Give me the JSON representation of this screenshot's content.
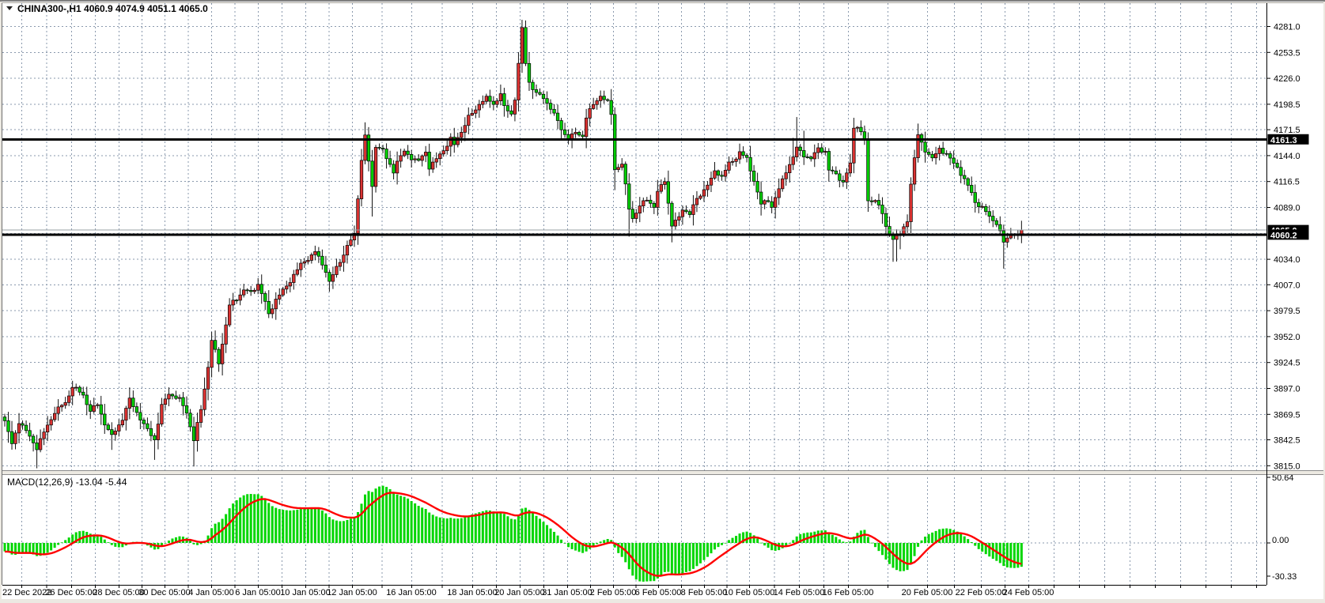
{
  "title": {
    "symbol": "CHINA300-",
    "timeframe": "H1",
    "open": "4060.9",
    "high": "4074.9",
    "low": "4051.1",
    "close": "4065.0",
    "text": "CHINA300-,H1  4060.9 4074.9 4051.1 4065.0"
  },
  "price_axis": {
    "ticks": [
      "4281.0",
      "4253.5",
      "4226.0",
      "4198.5",
      "4171.5",
      "4144.0",
      "4116.5",
      "4089.0",
      "4034.0",
      "4007.0",
      "3979.5",
      "3952.0",
      "3924.5",
      "3897.0",
      "3869.5",
      "3842.5",
      "3815.0"
    ]
  },
  "time_axis": {
    "labels": [
      "22 Dec 2022",
      "26 Dec 05:00",
      "28 Dec 05:00",
      "30 Dec 05:00",
      "4 Jan 05:00",
      "6 Jan 05:00",
      "10 Jan 05:00",
      "12 Jan 05:00",
      "16 Jan 05:00",
      "18 Jan 05:00",
      "20 Jan 05:00",
      "31 Jan 05:00",
      "2 Feb 05:00",
      "6 Feb 05:00",
      "8 Feb 05:00",
      "10 Feb 05:00",
      "14 Feb 05:00",
      "16 Feb 05:00",
      "20 Feb 05:00",
      "22 Feb 05:00",
      "24 Feb 05:00"
    ],
    "x": [
      27,
      90,
      150,
      208,
      267,
      326,
      386,
      445,
      520,
      597,
      657,
      717,
      775,
      832,
      890,
      947,
      1010,
      1072,
      1172,
      1240,
      1300
    ]
  },
  "macd_panel": {
    "label": "MACD(12,26,9) -13.04 -5.44",
    "indicator": "MACD",
    "params": "12,26,9",
    "macd_value": "-13.04",
    "signal_value": "-5.44",
    "ticks": [
      {
        "text": "50.64",
        "value": 50.64
      },
      {
        "text": "0.00",
        "value": 0
      },
      {
        "text": "-30.33",
        "value": -30.33
      }
    ]
  },
  "levels": [
    {
      "label": "4161.3",
      "value": 4161.3
    },
    {
      "label": "4060.2",
      "value": 4060.2
    }
  ],
  "bid_line": {
    "label": "4065.0",
    "value": 4065.0
  },
  "colors": {
    "bull": "#da3231",
    "bear": "#00ce00",
    "wick": "#111111",
    "grid": "#8a99ad",
    "level": "#000000",
    "signal": "#ff0000",
    "histogram": "#00d600",
    "label_box": "#000000",
    "label_text": "#ffffff",
    "bid": "#9aa0a6"
  },
  "chart_data": {
    "type": "candlestick",
    "symbol": "CHINA300",
    "timeframe": "H1",
    "title": "CHINA300-,H1",
    "visible_range": {
      "price_min": 3815.0,
      "price_max": 4281.0,
      "time_start": "22 Dec 2022",
      "time_end": "24 Feb 05:00"
    },
    "last_candle": {
      "open": 4060.9,
      "high": 4074.9,
      "low": 4051.1,
      "close": 4065.0
    },
    "horizontal_lines": [
      4161.3,
      4060.2
    ],
    "current_price": 4065.0,
    "candle_count": 286,
    "price_waypoints": [
      [
        0,
        3862
      ],
      [
        2,
        3838
      ],
      [
        4,
        3862
      ],
      [
        7,
        3846
      ],
      [
        9,
        3834
      ],
      [
        12,
        3858
      ],
      [
        14,
        3872
      ],
      [
        17,
        3882
      ],
      [
        19,
        3899
      ],
      [
        22,
        3890
      ],
      [
        24,
        3873
      ],
      [
        26,
        3880
      ],
      [
        28,
        3860
      ],
      [
        30,
        3846
      ],
      [
        33,
        3865
      ],
      [
        35,
        3885
      ],
      [
        37,
        3872
      ],
      [
        39,
        3858
      ],
      [
        42,
        3843
      ],
      [
        44,
        3878
      ],
      [
        46,
        3892
      ],
      [
        49,
        3885
      ],
      [
        51,
        3872
      ],
      [
        53,
        3842
      ],
      [
        55,
        3875
      ],
      [
        57,
        3920
      ],
      [
        58,
        3948
      ],
      [
        60,
        3924
      ],
      [
        61,
        3945
      ],
      [
        63,
        3985
      ],
      [
        65,
        3992
      ],
      [
        67,
        4002
      ],
      [
        69,
        3998
      ],
      [
        71,
        4008
      ],
      [
        73,
        3988
      ],
      [
        74,
        3975
      ],
      [
        76,
        3992
      ],
      [
        79,
        4005
      ],
      [
        81,
        4018
      ],
      [
        83,
        4028
      ],
      [
        85,
        4035
      ],
      [
        87,
        4042
      ],
      [
        90,
        4022
      ],
      [
        91,
        4010
      ],
      [
        94,
        4032
      ],
      [
        96,
        4048
      ],
      [
        98,
        4060
      ],
      [
        100,
        4140
      ],
      [
        101,
        4165
      ],
      [
        103,
        4110
      ],
      [
        104,
        4155
      ],
      [
        106,
        4150
      ],
      [
        107,
        4140
      ],
      [
        109,
        4128
      ],
      [
        110,
        4138
      ],
      [
        112,
        4148
      ],
      [
        114,
        4142
      ],
      [
        116,
        4138
      ],
      [
        118,
        4148
      ],
      [
        119,
        4132
      ],
      [
        121,
        4140
      ],
      [
        123,
        4150
      ],
      [
        125,
        4162
      ],
      [
        126,
        4155
      ],
      [
        128,
        4170
      ],
      [
        130,
        4185
      ],
      [
        132,
        4192
      ],
      [
        133,
        4200
      ],
      [
        135,
        4205
      ],
      [
        137,
        4198
      ],
      [
        139,
        4210
      ],
      [
        140,
        4195
      ],
      [
        142,
        4188
      ],
      [
        143,
        4205
      ],
      [
        145,
        4278
      ],
      [
        146,
        4242
      ],
      [
        147,
        4222
      ],
      [
        149,
        4210
      ],
      [
        151,
        4205
      ],
      [
        153,
        4195
      ],
      [
        155,
        4180
      ],
      [
        156,
        4172
      ],
      [
        158,
        4162
      ],
      [
        160,
        4168
      ],
      [
        162,
        4165
      ],
      [
        163,
        4185
      ],
      [
        165,
        4198
      ],
      [
        167,
        4208
      ],
      [
        169,
        4200
      ],
      [
        170,
        4188
      ],
      [
        171,
        4130
      ],
      [
        173,
        4135
      ],
      [
        175,
        4088
      ],
      [
        176,
        4078
      ],
      [
        178,
        4090
      ],
      [
        180,
        4098
      ],
      [
        182,
        4090
      ],
      [
        183,
        4105
      ],
      [
        185,
        4118
      ],
      [
        187,
        4070
      ],
      [
        189,
        4078
      ],
      [
        190,
        4088
      ],
      [
        192,
        4082
      ],
      [
        194,
        4098
      ],
      [
        196,
        4108
      ],
      [
        198,
        4118
      ],
      [
        199,
        4128
      ],
      [
        201,
        4122
      ],
      [
        203,
        4135
      ],
      [
        205,
        4142
      ],
      [
        206,
        4148
      ],
      [
        208,
        4140
      ],
      [
        210,
        4118
      ],
      [
        212,
        4092
      ],
      [
        214,
        4097
      ],
      [
        215,
        4090
      ],
      [
        217,
        4108
      ],
      [
        219,
        4128
      ],
      [
        221,
        4142
      ],
      [
        222,
        4152
      ],
      [
        224,
        4145
      ],
      [
        226,
        4140
      ],
      [
        228,
        4152
      ],
      [
        230,
        4148
      ],
      [
        231,
        4128
      ],
      [
        233,
        4125
      ],
      [
        235,
        4115
      ],
      [
        237,
        4135
      ],
      [
        238,
        4174
      ],
      [
        239,
        4176
      ],
      [
        241,
        4160
      ],
      [
        242,
        4095
      ],
      [
        244,
        4098
      ],
      [
        246,
        4082
      ],
      [
        247,
        4068
      ],
      [
        249,
        4056
      ],
      [
        251,
        4060
      ],
      [
        253,
        4076
      ],
      [
        254,
        4114
      ],
      [
        256,
        4166
      ],
      [
        258,
        4150
      ],
      [
        260,
        4140
      ],
      [
        262,
        4152
      ],
      [
        264,
        4145
      ],
      [
        265,
        4140
      ],
      [
        267,
        4132
      ],
      [
        269,
        4118
      ],
      [
        271,
        4105
      ],
      [
        272,
        4095
      ],
      [
        274,
        4088
      ],
      [
        276,
        4080
      ],
      [
        278,
        4072
      ],
      [
        279,
        4062
      ],
      [
        280,
        4052
      ],
      [
        282,
        4062
      ],
      [
        284,
        4058
      ],
      [
        285,
        4065
      ]
    ],
    "high_spikes": [
      [
        101,
        6
      ],
      [
        130,
        6
      ],
      [
        221,
        16
      ],
      [
        222,
        20
      ],
      [
        224,
        14
      ]
    ],
    "low_spikes": [
      [
        9,
        12
      ],
      [
        30,
        10
      ],
      [
        42,
        14
      ],
      [
        53,
        16
      ],
      [
        103,
        20
      ],
      [
        171,
        10
      ],
      [
        175,
        18
      ],
      [
        187,
        10
      ],
      [
        249,
        18
      ],
      [
        250,
        16
      ],
      [
        251,
        12
      ],
      [
        280,
        16
      ]
    ],
    "macd": {
      "fast": 12,
      "slow": 26,
      "signal": 9,
      "last_macd": -13.04,
      "last_signal": -5.44,
      "display_max": 50.64,
      "display_min": -30.33
    }
  }
}
